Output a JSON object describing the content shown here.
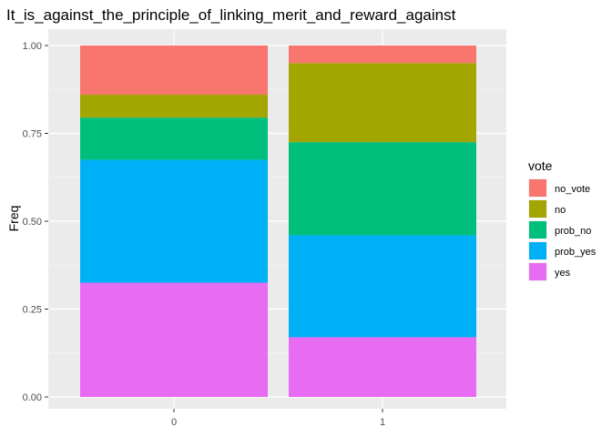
{
  "chart_data": {
    "type": "bar",
    "stacked": true,
    "title": "It_is_against_the_principle_of_linking_merit_and_reward_against",
    "xlabel": "",
    "ylabel": "Freq",
    "categories": [
      "0",
      "1"
    ],
    "ylim": [
      0,
      1
    ],
    "yticks": [
      "0.00",
      "0.25",
      "0.50",
      "0.75",
      "1.00"
    ],
    "grid": true,
    "legend": {
      "title": "vote",
      "position": "right"
    },
    "series": [
      {
        "name": "no_vote",
        "color": "#F8766D",
        "values": [
          0.14,
          0.05
        ]
      },
      {
        "name": "no",
        "color": "#A3A500",
        "values": [
          0.065,
          0.225
        ]
      },
      {
        "name": "prob_no",
        "color": "#00BF7D",
        "values": [
          0.12,
          0.265
        ]
      },
      {
        "name": "prob_yes",
        "color": "#00B0F6",
        "values": [
          0.35,
          0.29
        ]
      },
      {
        "name": "yes",
        "color": "#E76BF3",
        "values": [
          0.325,
          0.17
        ]
      }
    ]
  }
}
